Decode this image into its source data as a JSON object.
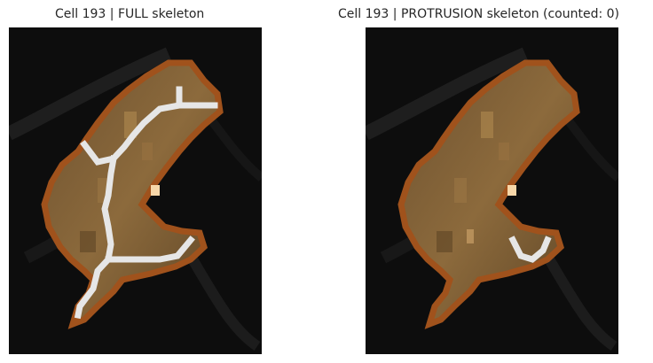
{
  "panels": [
    {
      "title": "Cell 193 | FULL skeleton",
      "skeleton": "full"
    },
    {
      "title": "Cell 193 | PROTRUSION skeleton (counted: 0)",
      "skeleton": "protrusion"
    }
  ],
  "colors": {
    "background": "#0c0c0c",
    "cell_fill": "#8a6838",
    "cell_border": "#a0521c",
    "skeleton": "#e6e6e6",
    "highlight": "#f6d6a8"
  }
}
